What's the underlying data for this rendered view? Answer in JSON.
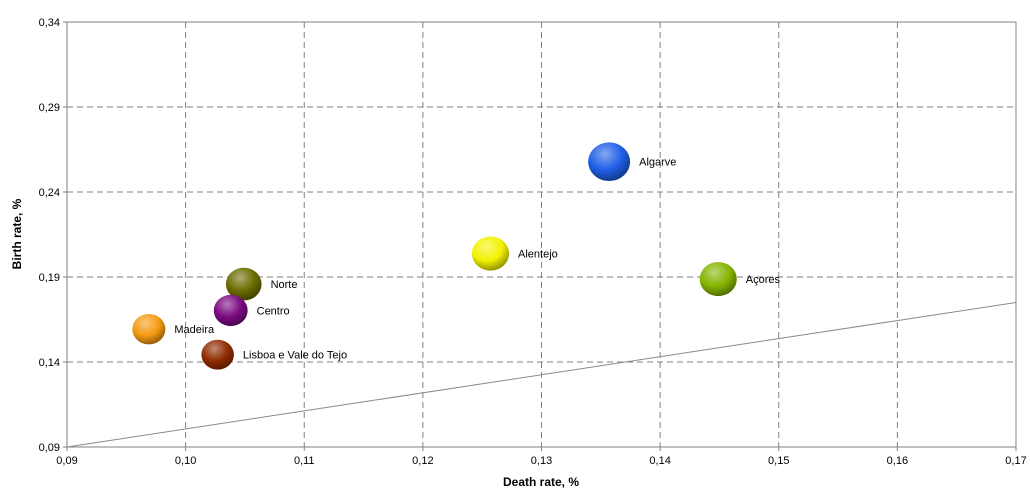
{
  "chart_data": {
    "type": "scatter",
    "title": "",
    "xlabel": "Death rate, %",
    "ylabel": "Birth rate, %",
    "xlim": [
      0.09,
      0.17
    ],
    "ylim": [
      0.09,
      0.34
    ],
    "x_ticks": [
      "0,09",
      "0,10",
      "0,11",
      "0,12",
      "0,13",
      "0,14",
      "0,15",
      "0,16",
      "0,17"
    ],
    "x_tick_values": [
      0.09,
      0.1,
      0.11,
      0.12,
      0.13,
      0.14,
      0.15,
      0.16,
      0.17
    ],
    "y_ticks": [
      "0,09",
      "0,14",
      "0,19",
      "0,24",
      "0,29",
      "0,34"
    ],
    "y_tick_values": [
      0.09,
      0.14,
      0.19,
      0.24,
      0.29,
      0.34
    ],
    "grid": true,
    "legend": "none",
    "points": [
      {
        "label": "Algarve",
        "x": 0.1357,
        "y": 0.2578,
        "size": 1.0,
        "color": "#1f5fe6"
      },
      {
        "label": "Alentejo",
        "x": 0.1257,
        "y": 0.2038,
        "size": 0.78,
        "color": "#f2f200"
      },
      {
        "label": "Açores",
        "x": 0.1449,
        "y": 0.1888,
        "size": 0.78,
        "color": "#86b400"
      },
      {
        "label": "Norte",
        "x": 0.1049,
        "y": 0.1858,
        "size": 0.72,
        "color": "#6b6b00"
      },
      {
        "label": "Centro",
        "x": 0.1038,
        "y": 0.1703,
        "size": 0.65,
        "color": "#7a0a80"
      },
      {
        "label": "Madeira",
        "x": 0.0969,
        "y": 0.1593,
        "size": 0.62,
        "color": "#f59a12"
      },
      {
        "label": "Lisboa e Vale do Tejo",
        "x": 0.1027,
        "y": 0.1443,
        "size": 0.6,
        "color": "#8f2b00"
      }
    ],
    "reference_line": {
      "x": [
        0.09,
        0.17
      ],
      "y": [
        0.09,
        0.175
      ],
      "color": "#8a8a8a"
    }
  }
}
